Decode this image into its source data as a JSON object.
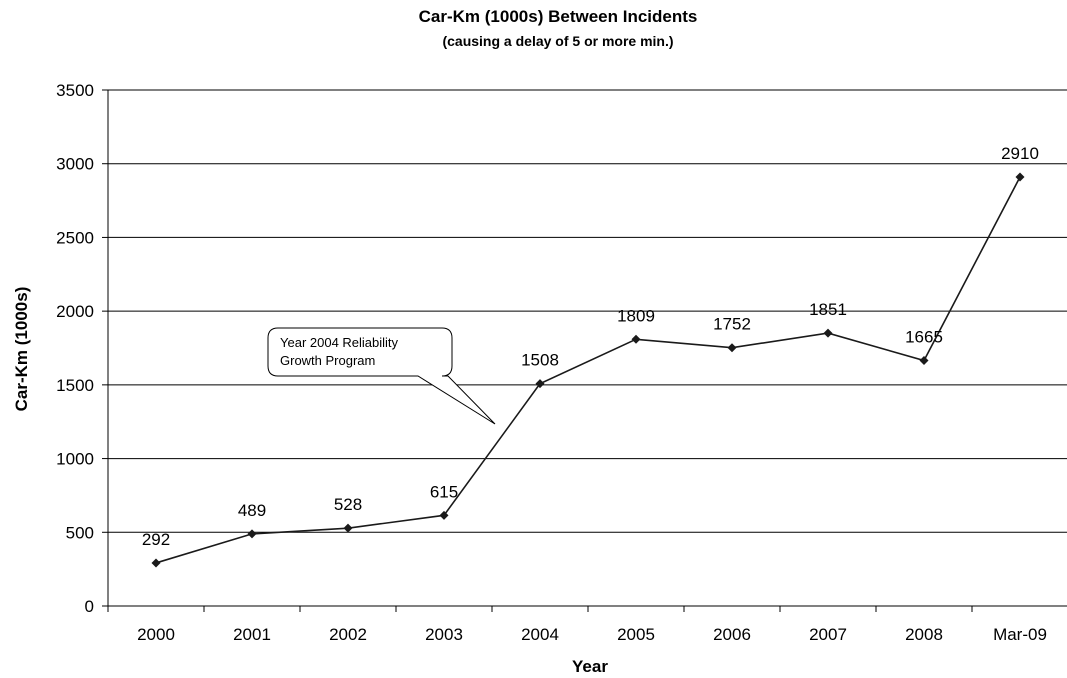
{
  "chart_data": {
    "type": "line",
    "title": "Car-Km (1000s) Between Incidents",
    "subtitle": "(causing a delay of 5 or more min.)",
    "xlabel": "Year",
    "ylabel": "Car-Km (1000s)",
    "categories": [
      "2000",
      "2001",
      "2002",
      "2003",
      "2004",
      "2005",
      "2006",
      "2007",
      "2008",
      "Mar-09"
    ],
    "values": [
      292,
      489,
      528,
      615,
      1508,
      1809,
      1752,
      1851,
      1665,
      2910
    ],
    "data_labels": [
      "292",
      "489",
      "528",
      "615",
      "1508",
      "1809",
      "1752",
      "1851",
      "1665",
      "2910"
    ],
    "ylim": [
      0,
      3500
    ],
    "yticks": [
      "0",
      "500",
      "1000",
      "1500",
      "2000",
      "2500",
      "3000",
      "3500"
    ],
    "grid": "horizontal",
    "legend": "none",
    "marker": "diamond",
    "line_color": "#1a1a1a",
    "annotation": {
      "lines": [
        "Year 2004 Reliability",
        "Growth Program"
      ]
    }
  }
}
